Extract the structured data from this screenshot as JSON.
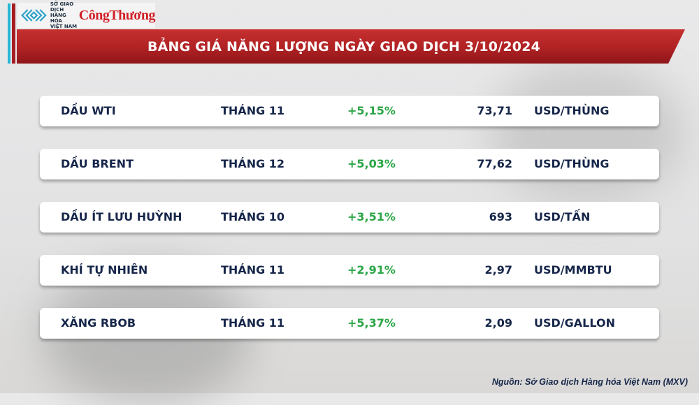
{
  "header": {
    "logo_exchange": "SỞ GIAO DỊCH HÀNG HÓA VIỆT NAM",
    "logo_exchange_lines": [
      "SỞ GIAO DỊCH",
      "HÀNG HÓA",
      "VIỆT NAM"
    ],
    "logo_brand": "CôngThương",
    "title": "BẢNG GIÁ NĂNG LƯỢNG NGÀY GIAO DỊCH 3/10/2024"
  },
  "colors": {
    "banner_red": "#b02224",
    "accent_cyan": "#29b6d8",
    "positive_green": "#2aa546",
    "text_navy": "#16264a"
  },
  "rows": [
    {
      "name": "DẦU WTI",
      "month": "THÁNG 11",
      "change": "+5,15%",
      "price": "73,71",
      "unit": "USD/THÙNG"
    },
    {
      "name": "DẦU BRENT",
      "month": "THÁNG 12",
      "change": "+5,03%",
      "price": "77,62",
      "unit": "USD/THÙNG"
    },
    {
      "name": "DẦU ÍT LƯU HUỲNH",
      "month": "THÁNG 10",
      "change": "+3,51%",
      "price": "693",
      "unit": "USD/TẤN"
    },
    {
      "name": "KHÍ TỰ NHIÊN",
      "month": "THÁNG 11",
      "change": "+2,91%",
      "price": "2,97",
      "unit": "USD/MMBTU"
    },
    {
      "name": "XĂNG RBOB",
      "month": "THÁNG 11",
      "change": "+5,37%",
      "price": "2,09",
      "unit": "USD/GALLON"
    }
  ],
  "footer": {
    "source": "Nguồn: Sở Giao dịch Hàng hóa Việt Nam (MXV)"
  }
}
